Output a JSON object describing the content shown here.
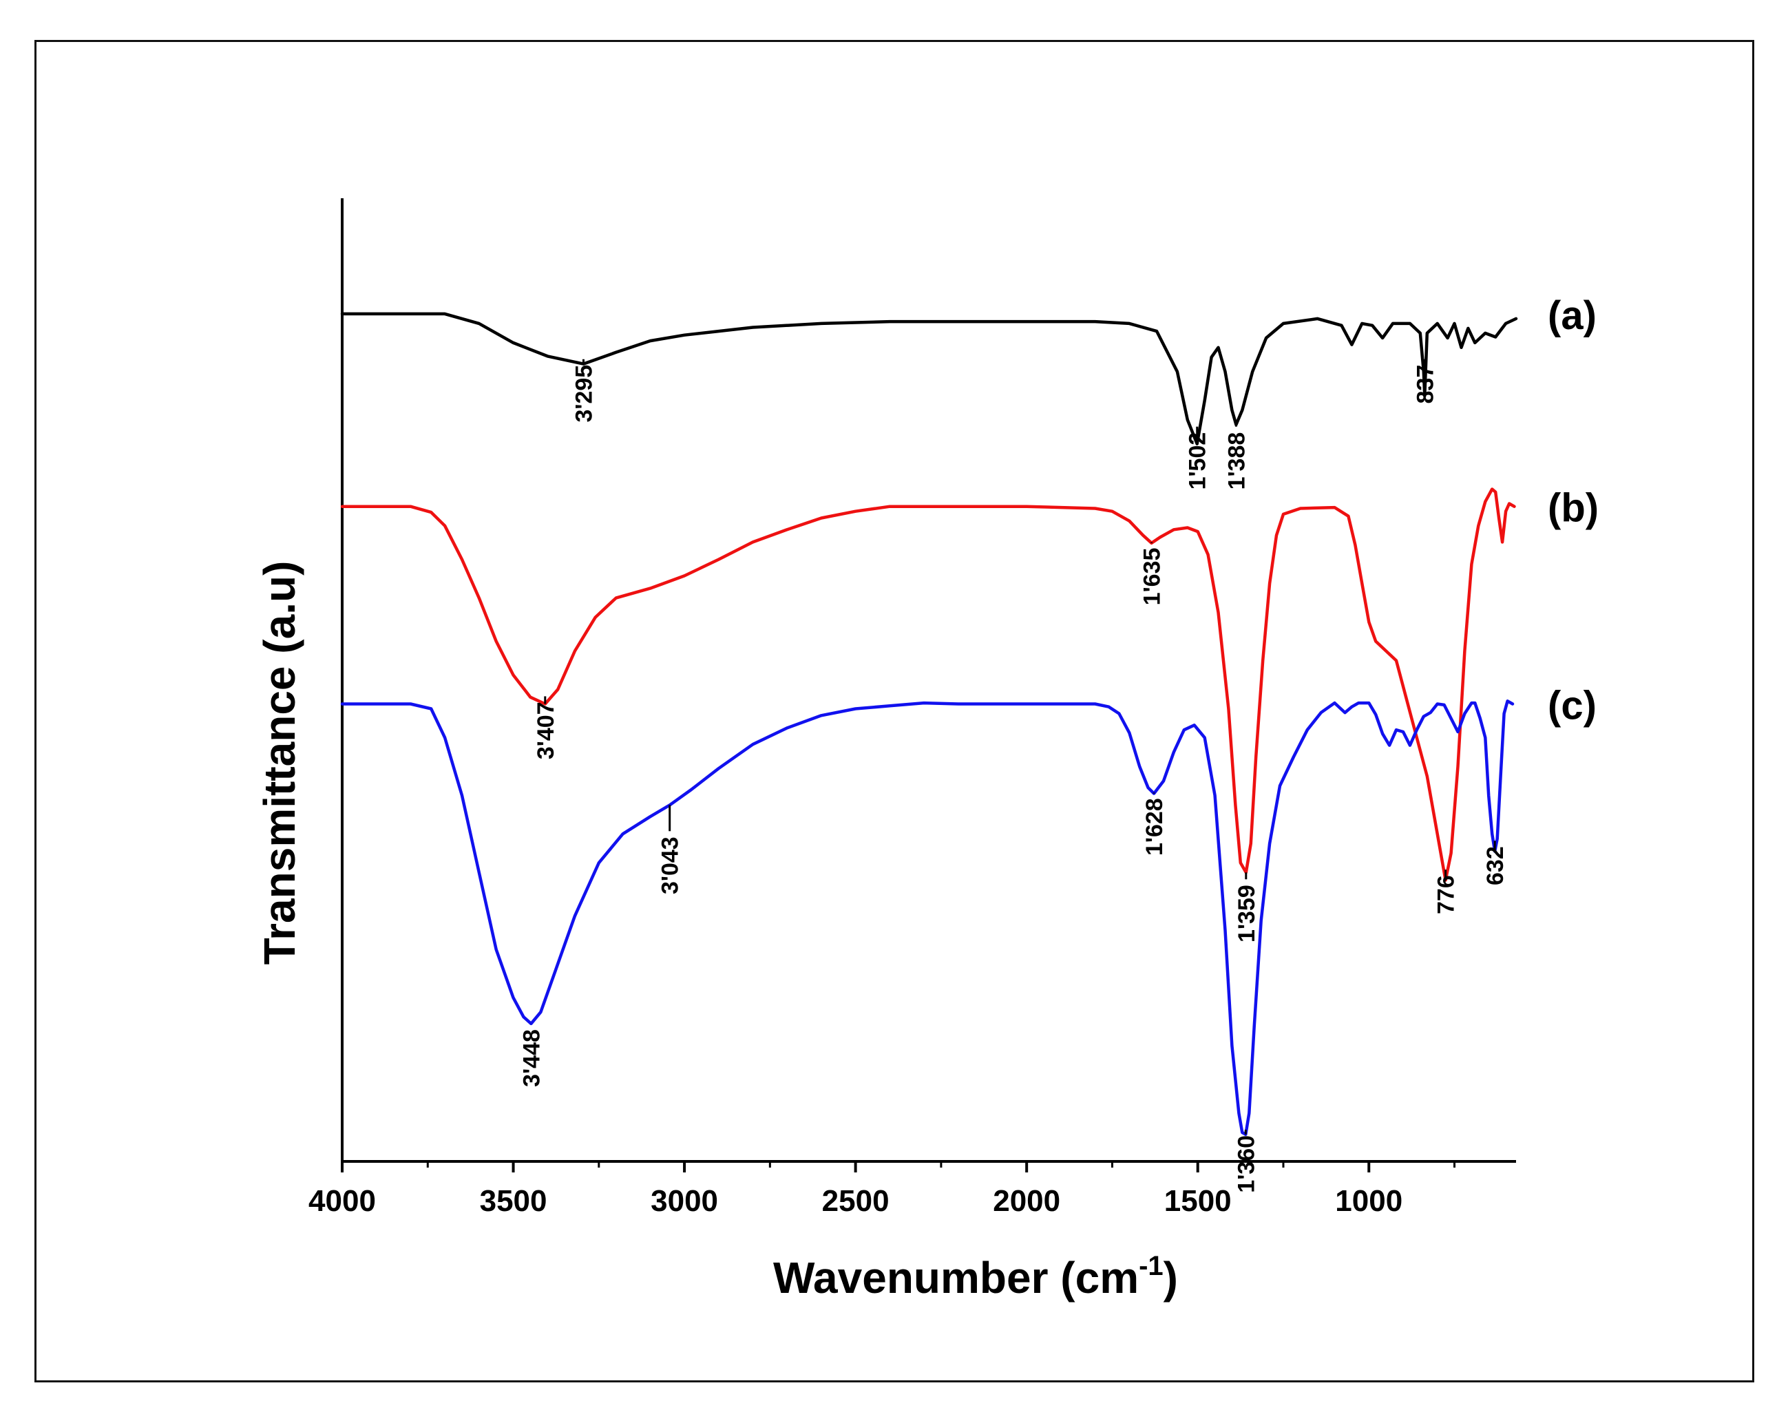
{
  "chart_data": {
    "type": "line",
    "title": "",
    "xlabel": "Wavenumber (cm",
    "xlabel_sup": "-1",
    "xlabel_close": ")",
    "ylabel": "Transmittance (a.u)",
    "xlim": [
      4000,
      570
    ],
    "x_reversed": true,
    "x_ticks": [
      4000,
      3500,
      3000,
      2500,
      2000,
      1500,
      1000
    ],
    "x_tick_labels": [
      "4000",
      "3500",
      "3000",
      "2500",
      "2000",
      "1500",
      "1000"
    ],
    "ylim": [
      0,
      100
    ],
    "y_ticks_shown": false,
    "grid": false,
    "series": [
      {
        "name": "(a)",
        "color": "#000000",
        "baseline": 88,
        "points": [
          [
            4000,
            88
          ],
          [
            3700,
            88
          ],
          [
            3600,
            87
          ],
          [
            3500,
            85
          ],
          [
            3400,
            83.6
          ],
          [
            3295,
            82.8
          ],
          [
            3200,
            84
          ],
          [
            3100,
            85.2
          ],
          [
            3000,
            85.8
          ],
          [
            2900,
            86.2
          ],
          [
            2800,
            86.6
          ],
          [
            2600,
            87
          ],
          [
            2400,
            87.2
          ],
          [
            2200,
            87.2
          ],
          [
            2000,
            87.2
          ],
          [
            1800,
            87.2
          ],
          [
            1700,
            87
          ],
          [
            1620,
            86.2
          ],
          [
            1560,
            82
          ],
          [
            1530,
            77
          ],
          [
            1502,
            74.5
          ],
          [
            1480,
            79
          ],
          [
            1460,
            83.5
          ],
          [
            1440,
            84.5
          ],
          [
            1420,
            82
          ],
          [
            1400,
            78
          ],
          [
            1388,
            76.5
          ],
          [
            1370,
            78
          ],
          [
            1340,
            82
          ],
          [
            1300,
            85.5
          ],
          [
            1250,
            87
          ],
          [
            1150,
            87.5
          ],
          [
            1080,
            86.8
          ],
          [
            1050,
            84.8
          ],
          [
            1020,
            87
          ],
          [
            990,
            86.8
          ],
          [
            960,
            85.5
          ],
          [
            930,
            87
          ],
          [
            880,
            87
          ],
          [
            850,
            86
          ],
          [
            840,
            82
          ],
          [
            837,
            79.5
          ],
          [
            830,
            86
          ],
          [
            800,
            87
          ],
          [
            770,
            85.5
          ],
          [
            750,
            87
          ],
          [
            730,
            84.5
          ],
          [
            710,
            86.5
          ],
          [
            690,
            85
          ],
          [
            660,
            86
          ],
          [
            630,
            85.6
          ],
          [
            600,
            87
          ],
          [
            570,
            87.5
          ]
        ],
        "peaks": [
          {
            "x": 3295,
            "label": "3'295",
            "label_y": 77
          },
          {
            "x": 1502,
            "label": "1'502",
            "label_y": 70
          },
          {
            "x": 1388,
            "label": "1'388",
            "label_y": 70
          },
          {
            "x": 837,
            "label": "837",
            "label_y": 77
          }
        ]
      },
      {
        "name": "(b)",
        "color": "#ee1111",
        "baseline": 68,
        "points": [
          [
            4000,
            68
          ],
          [
            3800,
            68
          ],
          [
            3740,
            67.4
          ],
          [
            3700,
            66
          ],
          [
            3650,
            62.5
          ],
          [
            3600,
            58.5
          ],
          [
            3550,
            54
          ],
          [
            3500,
            50.5
          ],
          [
            3450,
            48.2
          ],
          [
            3407,
            47.5
          ],
          [
            3370,
            49
          ],
          [
            3320,
            53
          ],
          [
            3260,
            56.5
          ],
          [
            3200,
            58.5
          ],
          [
            3100,
            59.5
          ],
          [
            3000,
            60.8
          ],
          [
            2900,
            62.5
          ],
          [
            2800,
            64.3
          ],
          [
            2700,
            65.6
          ],
          [
            2600,
            66.8
          ],
          [
            2500,
            67.5
          ],
          [
            2400,
            68
          ],
          [
            2200,
            68
          ],
          [
            2000,
            68
          ],
          [
            1800,
            67.8
          ],
          [
            1750,
            67.5
          ],
          [
            1700,
            66.5
          ],
          [
            1660,
            65
          ],
          [
            1635,
            64.2
          ],
          [
            1610,
            64.8
          ],
          [
            1570,
            65.6
          ],
          [
            1530,
            65.8
          ],
          [
            1500,
            65.4
          ],
          [
            1470,
            63
          ],
          [
            1440,
            57
          ],
          [
            1410,
            47
          ],
          [
            1390,
            37
          ],
          [
            1375,
            31
          ],
          [
            1359,
            30
          ],
          [
            1345,
            33
          ],
          [
            1330,
            42
          ],
          [
            1310,
            52
          ],
          [
            1290,
            60
          ],
          [
            1270,
            65
          ],
          [
            1250,
            67.2
          ],
          [
            1200,
            67.8
          ],
          [
            1100,
            67.9
          ],
          [
            1060,
            67
          ],
          [
            1040,
            64
          ],
          [
            1020,
            60
          ],
          [
            1000,
            56
          ],
          [
            980,
            54
          ],
          [
            950,
            53
          ],
          [
            920,
            52
          ],
          [
            890,
            48
          ],
          [
            860,
            44
          ],
          [
            830,
            40
          ],
          [
            800,
            34
          ],
          [
            776,
            29.2
          ],
          [
            760,
            32
          ],
          [
            740,
            41
          ],
          [
            720,
            53
          ],
          [
            700,
            62
          ],
          [
            680,
            66
          ],
          [
            660,
            68.5
          ],
          [
            640,
            69.8
          ],
          [
            630,
            69.5
          ],
          [
            620,
            66.8
          ],
          [
            610,
            64.3
          ],
          [
            600,
            67.5
          ],
          [
            590,
            68.3
          ],
          [
            575,
            68
          ]
        ],
        "peaks": [
          {
            "x": 3407,
            "label": "3'407",
            "label_y": 42
          },
          {
            "x": 1635,
            "label": "1'635",
            "label_y": 58
          },
          {
            "x": 1359,
            "label": "1'359",
            "label_y": 23
          },
          {
            "x": 776,
            "label": "776",
            "label_y": 24
          }
        ]
      },
      {
        "name": "(c)",
        "color": "#1111ee",
        "baseline": 47.5,
        "points": [
          [
            4000,
            47.5
          ],
          [
            3800,
            47.5
          ],
          [
            3740,
            47
          ],
          [
            3700,
            44
          ],
          [
            3650,
            38
          ],
          [
            3600,
            30
          ],
          [
            3550,
            22
          ],
          [
            3500,
            17
          ],
          [
            3470,
            15
          ],
          [
            3448,
            14.3
          ],
          [
            3420,
            15.5
          ],
          [
            3380,
            19.5
          ],
          [
            3320,
            25.5
          ],
          [
            3250,
            31
          ],
          [
            3180,
            34
          ],
          [
            3100,
            35.8
          ],
          [
            3043,
            37
          ],
          [
            2980,
            38.6
          ],
          [
            2900,
            40.8
          ],
          [
            2800,
            43.3
          ],
          [
            2700,
            45
          ],
          [
            2600,
            46.3
          ],
          [
            2500,
            47
          ],
          [
            2400,
            47.3
          ],
          [
            2300,
            47.6
          ],
          [
            2200,
            47.5
          ],
          [
            2000,
            47.5
          ],
          [
            1800,
            47.5
          ],
          [
            1760,
            47.2
          ],
          [
            1730,
            46.5
          ],
          [
            1700,
            44.5
          ],
          [
            1670,
            41
          ],
          [
            1645,
            38.8
          ],
          [
            1628,
            38.2
          ],
          [
            1600,
            39.5
          ],
          [
            1570,
            42.5
          ],
          [
            1540,
            44.8
          ],
          [
            1510,
            45.3
          ],
          [
            1480,
            44
          ],
          [
            1450,
            38
          ],
          [
            1420,
            24
          ],
          [
            1400,
            12
          ],
          [
            1380,
            5
          ],
          [
            1370,
            3
          ],
          [
            1360,
            2.8
          ],
          [
            1350,
            5
          ],
          [
            1335,
            14
          ],
          [
            1315,
            25
          ],
          [
            1290,
            33
          ],
          [
            1260,
            39
          ],
          [
            1220,
            42
          ],
          [
            1180,
            44.8
          ],
          [
            1140,
            46.6
          ],
          [
            1100,
            47.6
          ],
          [
            1070,
            46.6
          ],
          [
            1050,
            47.2
          ],
          [
            1030,
            47.6
          ],
          [
            1000,
            47.6
          ],
          [
            980,
            46.4
          ],
          [
            960,
            44.4
          ],
          [
            940,
            43.2
          ],
          [
            920,
            44.8
          ],
          [
            900,
            44.6
          ],
          [
            880,
            43.2
          ],
          [
            860,
            44.8
          ],
          [
            840,
            46.2
          ],
          [
            820,
            46.6
          ],
          [
            800,
            47.5
          ],
          [
            780,
            47.4
          ],
          [
            760,
            46
          ],
          [
            740,
            44.6
          ],
          [
            720,
            46.5
          ],
          [
            700,
            47.6
          ],
          [
            690,
            47.6
          ],
          [
            675,
            46
          ],
          [
            660,
            44
          ],
          [
            650,
            38
          ],
          [
            640,
            34
          ],
          [
            632,
            32.2
          ],
          [
            625,
            33.5
          ],
          [
            615,
            40
          ],
          [
            605,
            46.5
          ],
          [
            595,
            47.8
          ],
          [
            580,
            47.5
          ]
        ],
        "peaks": [
          {
            "x": 3448,
            "label": "3'448",
            "label_y": 8
          },
          {
            "x": 3043,
            "label": "3'043",
            "label_y": 28
          },
          {
            "x": 1628,
            "label": "1'628",
            "label_y": 32
          },
          {
            "x": 1360,
            "label": "1'360",
            "label_y": -3
          },
          {
            "x": 632,
            "label": "632",
            "label_y": 27
          }
        ]
      }
    ]
  }
}
